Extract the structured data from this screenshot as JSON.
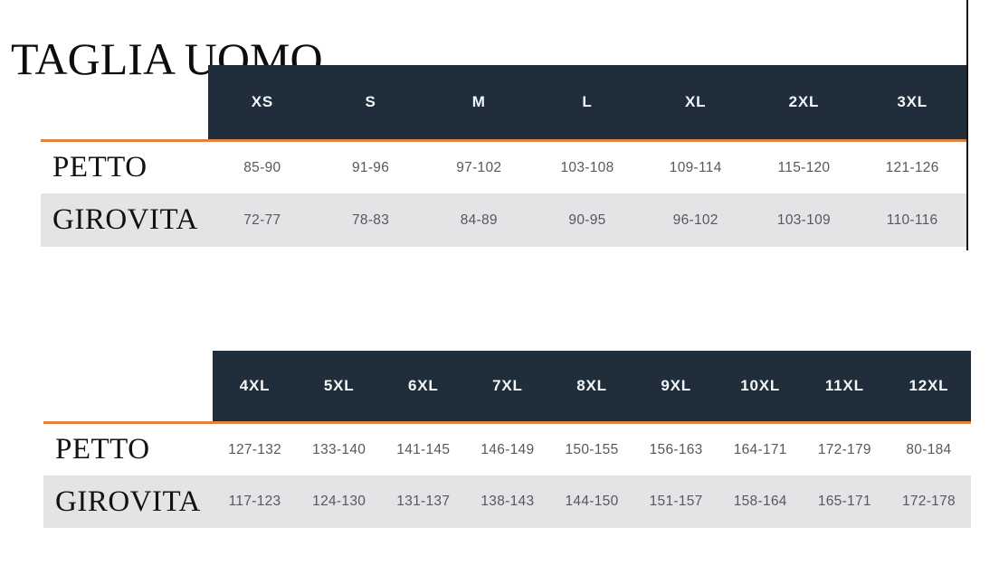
{
  "page": {
    "title": "TAGLIA UOMO"
  },
  "theme": {
    "header_bg": "#1f2e3a",
    "header_text": "#ffffff",
    "accent_orange": "#e08240",
    "alt_row_bg": "#e4e4e6",
    "value_text": "#55585c",
    "label_text": "#121212"
  },
  "tables": [
    {
      "sizes": [
        "XS",
        "S",
        "M",
        "L",
        "XL",
        "2XL",
        "3XL"
      ],
      "rows": [
        {
          "label": "PETTO",
          "values": [
            "85-90",
            "91-96",
            "97-102",
            "103-108",
            "109-114",
            "115-120",
            "121-126"
          ]
        },
        {
          "label": "GIROVITA",
          "values": [
            "72-77",
            "78-83",
            "84-89",
            "90-95",
            "96-102",
            "103-109",
            "110-116"
          ]
        }
      ]
    },
    {
      "sizes": [
        "4XL",
        "5XL",
        "6XL",
        "7XL",
        "8XL",
        "9XL",
        "10XL",
        "11XL",
        "12XL"
      ],
      "rows": [
        {
          "label": "PETTO",
          "values": [
            "127-132",
            "133-140",
            "141-145",
            "146-149",
            "150-155",
            "156-163",
            "164-171",
            "172-179",
            "80-184"
          ]
        },
        {
          "label": "GIROVITA",
          "values": [
            "117-123",
            "124-130",
            "131-137",
            "138-143",
            "144-150",
            "151-157",
            "158-164",
            "165-171",
            "172-178"
          ]
        }
      ]
    }
  ]
}
